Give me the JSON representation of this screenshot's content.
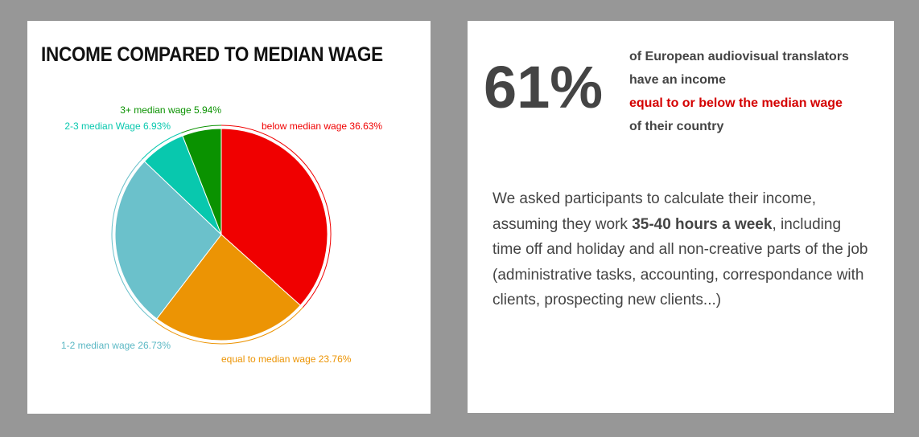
{
  "chart_data": {
    "type": "pie",
    "title": "INCOME COMPARED TO MEDIAN WAGE",
    "slices": [
      {
        "label": "below median wage 36.63%",
        "name": "below median wage",
        "value": 36.63,
        "color": "#f00000"
      },
      {
        "label": "equal to median wage 23.76%",
        "name": "equal to median wage",
        "value": 23.76,
        "color": "#ec9404"
      },
      {
        "label": "1-2 median wage 26.73%",
        "name": "1-2 median wage",
        "value": 26.73,
        "color": "#6bc1cb"
      },
      {
        "label": "2-3 median Wage 6.93%",
        "name": "2-3 median Wage",
        "value": 6.93,
        "color": "#08c8ae"
      },
      {
        "label": "3+ median wage 5.94%",
        "name": "3+ median wage",
        "value": 5.94,
        "color": "#0a9200"
      }
    ]
  },
  "info": {
    "big_percent": "61%",
    "line1": "of European audiovisual translators",
    "line2": "have an income",
    "line3": "equal to or below the median wage",
    "line4": "of their country",
    "para_before": "We asked participants to calculate their income, assuming they work ",
    "para_bold": "35-40 hours a week",
    "para_after": ", including time off and holiday and all non-creative parts of the job (administrative tasks, accounting, correspondance with clients, prospecting new clients...)"
  }
}
